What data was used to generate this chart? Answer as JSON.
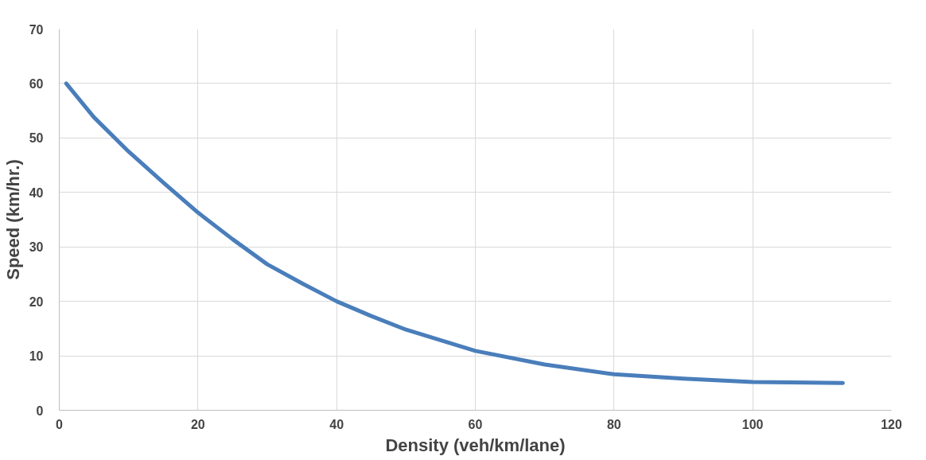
{
  "chart_data": {
    "type": "line",
    "xlabel": "Density (veh/km/lane)",
    "ylabel": "Speed (km/hr.)",
    "x": [
      1,
      5,
      10,
      15,
      20,
      25,
      30,
      35,
      40,
      45,
      50,
      60,
      70,
      80,
      90,
      100,
      113
    ],
    "series": [
      {
        "color": "#4a7ebb",
        "values": [
          60,
          53.8,
          47.5,
          41.8,
          36.3,
          31.4,
          26.8,
          23.3,
          20,
          17.3,
          14.8,
          10.9,
          8.4,
          6.6,
          5.8,
          5.2,
          5
        ]
      }
    ],
    "xlim": [
      0,
      120
    ],
    "xticks": [
      0,
      20,
      40,
      60,
      80,
      100,
      120
    ],
    "ylim": [
      0,
      70
    ],
    "yticks": [
      0,
      10,
      20,
      30,
      40,
      50,
      60,
      70
    ],
    "grid": true,
    "marker": "none",
    "line_style": "solid"
  }
}
